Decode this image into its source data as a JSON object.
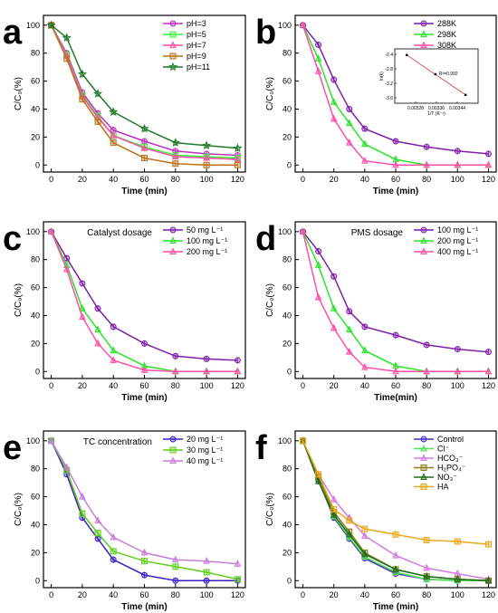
{
  "chart_data": [
    {
      "panel": "a",
      "type": "line",
      "xlabel": "Time (min)",
      "ylabel": "C/C₀(%)",
      "x": [
        0,
        10,
        20,
        30,
        40,
        60,
        80,
        100,
        120
      ],
      "xlim": [
        -5,
        125
      ],
      "xticks": [
        0,
        20,
        40,
        60,
        80,
        100,
        120
      ],
      "ylim": [
        -5,
        107
      ],
      "yticks": [
        0,
        20,
        40,
        60,
        80,
        100
      ],
      "legend_position": "top-right",
      "series": [
        {
          "name": "pH=3",
          "color": "#c02ec4",
          "marker": "circle",
          "values": [
            100,
            80,
            52,
            37,
            25,
            17,
            10,
            8,
            7
          ]
        },
        {
          "name": "pH=5",
          "color": "#3af03a",
          "marker": "square",
          "values": [
            100,
            79,
            50,
            35,
            21,
            13,
            7,
            6,
            5
          ]
        },
        {
          "name": "pH=7",
          "color": "#ff4fa6",
          "marker": "triangle",
          "values": [
            100,
            78,
            49,
            34,
            21,
            12,
            6,
            5,
            4
          ]
        },
        {
          "name": "pH=9",
          "color": "#b8731c",
          "marker": "square",
          "values": [
            100,
            76,
            47,
            31,
            16,
            5,
            1,
            0,
            0
          ]
        },
        {
          "name": "pH=11",
          "color": "#1f7a2a",
          "marker": "star",
          "values": [
            100,
            91,
            65,
            51,
            38,
            26,
            16,
            14,
            12
          ]
        }
      ]
    },
    {
      "panel": "b",
      "type": "line",
      "xlabel": "Time (min)",
      "ylabel": "C/C₀(%)",
      "x": [
        0,
        10,
        20,
        30,
        40,
        60,
        80,
        100,
        120
      ],
      "xlim": [
        -5,
        125
      ],
      "xticks": [
        0,
        20,
        40,
        60,
        80,
        100,
        120
      ],
      "ylim": [
        -5,
        107
      ],
      "yticks": [
        0,
        20,
        40,
        60,
        80,
        100
      ],
      "legend_position": "top-right",
      "series": [
        {
          "name": "288K",
          "color": "#7f1fa8",
          "marker": "circle",
          "values": [
            100,
            86,
            61,
            40,
            26,
            17,
            13,
            10,
            8
          ]
        },
        {
          "name": "298K",
          "color": "#2ee32e",
          "marker": "triangle",
          "values": [
            100,
            76,
            45,
            30,
            15,
            4,
            0,
            0,
            0
          ]
        },
        {
          "name": "308K",
          "color": "#ff4fa6",
          "marker": "triangle",
          "values": [
            100,
            67,
            33,
            16,
            3,
            0,
            0,
            0,
            0
          ]
        }
      ],
      "inset": {
        "xlabel": "1/T (K⁻¹)",
        "ylabel": "ln(k)",
        "xlim": [
          0.0032,
          0.00352
        ],
        "ylim": [
          -3.75,
          -2.25
        ],
        "xticks": [
          "0.00328",
          "0.00336",
          "0.00344"
        ],
        "yticks": [
          "-2.4",
          "-2.8",
          "-3.2",
          "-3.6"
        ],
        "annotation": "R²=0.992",
        "points": [
          [
            0.003246,
            -2.42
          ],
          [
            0.003356,
            -2.95
          ],
          [
            0.003472,
            -3.52
          ]
        ]
      }
    },
    {
      "panel": "c",
      "type": "line",
      "title": "Catalyst dosage",
      "xlabel": "Time (min)",
      "ylabel": "C/C₀(%)",
      "x": [
        0,
        10,
        20,
        30,
        40,
        60,
        80,
        100,
        120
      ],
      "xlim": [
        -5,
        125
      ],
      "xticks": [
        0,
        20,
        40,
        60,
        80,
        100,
        120
      ],
      "ylim": [
        -5,
        107
      ],
      "yticks": [
        0,
        20,
        40,
        60,
        80,
        100
      ],
      "legend_position": "top-right",
      "series": [
        {
          "name": "50 mg L⁻¹",
          "color": "#7f1fa8",
          "marker": "circle",
          "values": [
            100,
            81,
            63,
            45,
            32,
            20,
            11,
            9,
            8
          ]
        },
        {
          "name": "100 mg L⁻¹",
          "color": "#2ee32e",
          "marker": "triangle",
          "values": [
            100,
            76,
            45,
            30,
            15,
            4,
            0,
            0,
            0
          ]
        },
        {
          "name": "200 mg L⁻¹",
          "color": "#ff4fa6",
          "marker": "triangle",
          "values": [
            100,
            73,
            39,
            20,
            8,
            1,
            0,
            0,
            0
          ]
        }
      ]
    },
    {
      "panel": "d",
      "type": "line",
      "title": "PMS dosage",
      "xlabel": "Time(min)",
      "ylabel": "C/C₀(%)",
      "x": [
        0,
        10,
        20,
        30,
        40,
        60,
        80,
        100,
        120
      ],
      "xlim": [
        -5,
        125
      ],
      "xticks": [
        0,
        20,
        40,
        60,
        80,
        100,
        120
      ],
      "ylim": [
        -5,
        107
      ],
      "yticks": [
        0,
        20,
        40,
        60,
        80,
        100
      ],
      "legend_position": "top-right",
      "series": [
        {
          "name": "100 mg L⁻¹",
          "color": "#7f1fa8",
          "marker": "circle",
          "values": [
            100,
            86,
            68,
            43,
            32,
            26,
            19,
            16,
            14
          ]
        },
        {
          "name": "200 mg L⁻¹",
          "color": "#2ee32e",
          "marker": "triangle",
          "values": [
            100,
            76,
            45,
            30,
            15,
            4,
            0,
            0,
            0
          ]
        },
        {
          "name": "400 mg L⁻¹",
          "color": "#ff4fa6",
          "marker": "triangle",
          "values": [
            100,
            53,
            31,
            14,
            3,
            0,
            0,
            0,
            0
          ]
        }
      ]
    },
    {
      "panel": "e",
      "type": "line",
      "title": "TC concentration",
      "xlabel": "Time (min)",
      "ylabel": "C/C₀(%)",
      "x": [
        0,
        10,
        20,
        30,
        40,
        60,
        80,
        100,
        120
      ],
      "xlim": [
        -5,
        125
      ],
      "xticks": [
        0,
        20,
        40,
        60,
        80,
        100,
        120
      ],
      "ylim": [
        -5,
        107
      ],
      "yticks": [
        0,
        20,
        40,
        60,
        80,
        100
      ],
      "legend_position": "top-right",
      "series": [
        {
          "name": "20 mg L⁻¹",
          "color": "#3b23c7",
          "marker": "circle",
          "values": [
            100,
            76,
            45,
            30,
            15,
            4,
            0,
            0,
            0
          ]
        },
        {
          "name": "30 mg L⁻¹",
          "color": "#5ecf1a",
          "marker": "square",
          "values": [
            100,
            79,
            48,
            34,
            21,
            14,
            10,
            6,
            1
          ]
        },
        {
          "name": "40 mg L⁻¹",
          "color": "#c77fd6",
          "marker": "triangle",
          "values": [
            100,
            81,
            60,
            43,
            31,
            20,
            15,
            14,
            12
          ]
        }
      ]
    },
    {
      "panel": "f",
      "type": "line",
      "xlabel": "Time (min)",
      "ylabel": "C/C₀(%)",
      "x": [
        0,
        10,
        20,
        30,
        40,
        60,
        80,
        100,
        120
      ],
      "xlim": [
        -5,
        125
      ],
      "xticks": [
        0,
        20,
        40,
        60,
        80,
        100,
        120
      ],
      "ylim": [
        -5,
        107
      ],
      "yticks": [
        0,
        20,
        40,
        60,
        80,
        100
      ],
      "legend_position": "top-right",
      "series": [
        {
          "name": "Control",
          "color": "#4a2fc4",
          "marker": "circle",
          "values": [
            100,
            72,
            45,
            30,
            16,
            5,
            1,
            0,
            0
          ]
        },
        {
          "name": "Cl⁻",
          "color": "#4ee34e",
          "marker": "triangle",
          "values": [
            100,
            73,
            46,
            31,
            17,
            6,
            1,
            0,
            0
          ]
        },
        {
          "name": "HCO₃⁻",
          "color": "#d27be0",
          "marker": "triangle",
          "values": [
            100,
            76,
            58,
            45,
            32,
            18,
            9,
            5,
            1
          ]
        },
        {
          "name": "H₂PO₄⁻",
          "color": "#8a7d12",
          "marker": "square",
          "values": [
            100,
            74,
            49,
            35,
            20,
            8,
            3,
            1,
            0
          ]
        },
        {
          "name": "NO₃⁻",
          "color": "#1c6e1c",
          "marker": "triangle",
          "values": [
            100,
            71,
            47,
            33,
            19,
            8,
            3,
            1,
            0
          ]
        },
        {
          "name": "HA",
          "color": "#e8a81a",
          "marker": "square",
          "values": [
            100,
            76,
            51,
            43,
            37,
            33,
            29,
            28,
            26
          ]
        }
      ]
    }
  ]
}
